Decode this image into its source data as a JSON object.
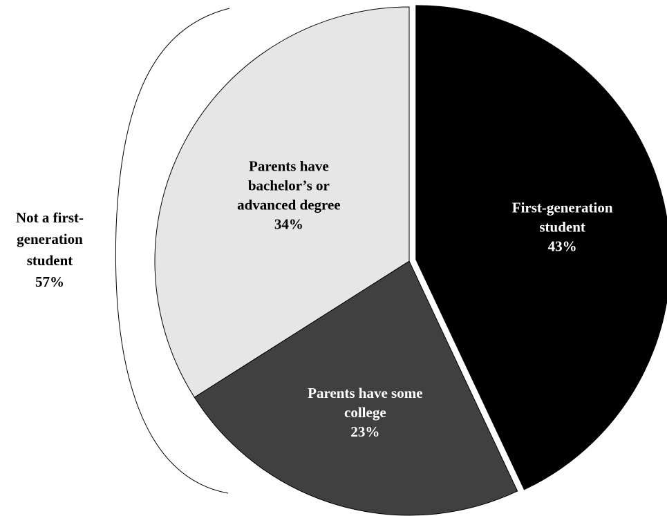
{
  "chart_data": {
    "type": "pie",
    "title": "",
    "slices": [
      {
        "label": [
          "First-generation",
          "student"
        ],
        "pct_label": "43%",
        "value": 43,
        "color": "#000000",
        "text_color": "#ffffff",
        "exploded": true
      },
      {
        "label": [
          "Parents have some",
          "college"
        ],
        "pct_label": "23%",
        "value": 23,
        "color": "#404040",
        "text_color": "#ffffff",
        "exploded": false
      },
      {
        "label": [
          "Parents have",
          "bachelor’s or",
          "advanced degree"
        ],
        "pct_label": "34%",
        "value": 34,
        "color": "#e6e6e6",
        "text_color": "#000000",
        "exploded": false
      }
    ],
    "group_annotation": {
      "lines": [
        "Not a first-",
        "generation",
        "student"
      ],
      "pct_label": "57%",
      "value": 57
    }
  }
}
